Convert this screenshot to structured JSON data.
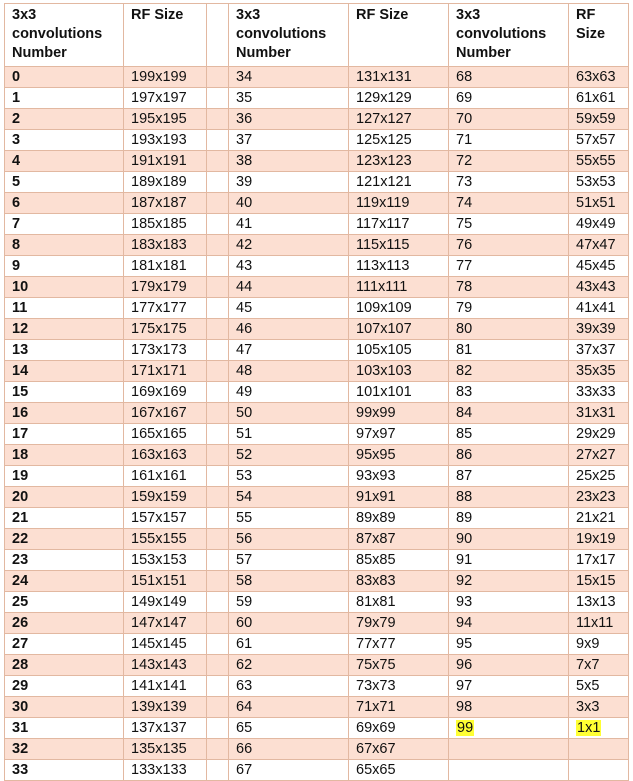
{
  "headers": {
    "num": "3x3 convolutions Number",
    "rf": "RF Size"
  },
  "rows": [
    [
      "0",
      "199x199",
      "34",
      "131x131",
      "68",
      "63x63"
    ],
    [
      "1",
      "197x197",
      "35",
      "129x129",
      "69",
      "61x61"
    ],
    [
      "2",
      "195x195",
      "36",
      "127x127",
      "70",
      "59x59"
    ],
    [
      "3",
      "193x193",
      "37",
      "125x125",
      "71",
      "57x57"
    ],
    [
      "4",
      "191x191",
      "38",
      "123x123",
      "72",
      "55x55"
    ],
    [
      "5",
      "189x189",
      "39",
      "121x121",
      "73",
      "53x53"
    ],
    [
      "6",
      "187x187",
      "40",
      "119x119",
      "74",
      "51x51"
    ],
    [
      "7",
      "185x185",
      "41",
      "117x117",
      "75",
      "49x49"
    ],
    [
      "8",
      "183x183",
      "42",
      "115x115",
      "76",
      "47x47"
    ],
    [
      "9",
      "181x181",
      "43",
      "113x113",
      "77",
      "45x45"
    ],
    [
      "10",
      "179x179",
      "44",
      "111x111",
      "78",
      "43x43"
    ],
    [
      "11",
      "177x177",
      "45",
      "109x109",
      "79",
      "41x41"
    ],
    [
      "12",
      "175x175",
      "46",
      "107x107",
      "80",
      "39x39"
    ],
    [
      "13",
      "173x173",
      "47",
      "105x105",
      "81",
      "37x37"
    ],
    [
      "14",
      "171x171",
      "48",
      "103x103",
      "82",
      "35x35"
    ],
    [
      "15",
      "169x169",
      "49",
      "101x101",
      "83",
      "33x33"
    ],
    [
      "16",
      "167x167",
      "50",
      "99x99",
      "84",
      "31x31"
    ],
    [
      "17",
      "165x165",
      "51",
      "97x97",
      "85",
      "29x29"
    ],
    [
      "18",
      "163x163",
      "52",
      "95x95",
      "86",
      "27x27"
    ],
    [
      "19",
      "161x161",
      "53",
      "93x93",
      "87",
      "25x25"
    ],
    [
      "20",
      "159x159",
      "54",
      "91x91",
      "88",
      "23x23"
    ],
    [
      "21",
      "157x157",
      "55",
      "89x89",
      "89",
      "21x21"
    ],
    [
      "22",
      "155x155",
      "56",
      "87x87",
      "90",
      "19x19"
    ],
    [
      "23",
      "153x153",
      "57",
      "85x85",
      "91",
      "17x17"
    ],
    [
      "24",
      "151x151",
      "58",
      "83x83",
      "92",
      "15x15"
    ],
    [
      "25",
      "149x149",
      "59",
      "81x81",
      "93",
      "13x13"
    ],
    [
      "26",
      "147x147",
      "60",
      "79x79",
      "94",
      "11x11"
    ],
    [
      "27",
      "145x145",
      "61",
      "77x77",
      "95",
      "9x9"
    ],
    [
      "28",
      "143x143",
      "62",
      "75x75",
      "96",
      "7x7"
    ],
    [
      "29",
      "141x141",
      "63",
      "73x73",
      "97",
      "5x5"
    ],
    [
      "30",
      "139x139",
      "64",
      "71x71",
      "98",
      "3x3"
    ],
    [
      "31",
      "137x137",
      "65",
      "69x69",
      "99",
      "1x1"
    ],
    [
      "32",
      "135x135",
      "66",
      "67x67",
      "",
      ""
    ],
    [
      "33",
      "133x133",
      "67",
      "65x65",
      "",
      ""
    ]
  ],
  "highlight": {
    "row": 31,
    "color": "#ffff33"
  },
  "colors": {
    "band": "#fcdfd2",
    "border": "#e2b8a1"
  }
}
